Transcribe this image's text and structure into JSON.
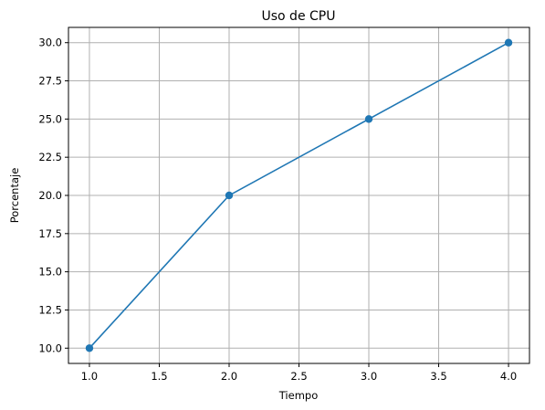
{
  "chart_data": {
    "type": "line",
    "title": "Uso de CPU",
    "xlabel": "Tiempo",
    "ylabel": "Porcentaje",
    "xlim": [
      0.85,
      4.15
    ],
    "ylim": [
      9.0,
      31.0
    ],
    "xticks": [
      "1.0",
      "1.5",
      "2.0",
      "2.5",
      "3.0",
      "3.5",
      "4.0"
    ],
    "yticks": [
      "10.0",
      "12.5",
      "15.0",
      "17.5",
      "20.0",
      "22.5",
      "25.0",
      "27.5",
      "30.0"
    ],
    "grid": true,
    "series": [
      {
        "color": "#1f77b4",
        "marker": "circle",
        "x": [
          1.0,
          2.0,
          3.0,
          4.0
        ],
        "y": [
          10,
          20,
          25,
          30
        ]
      }
    ]
  }
}
